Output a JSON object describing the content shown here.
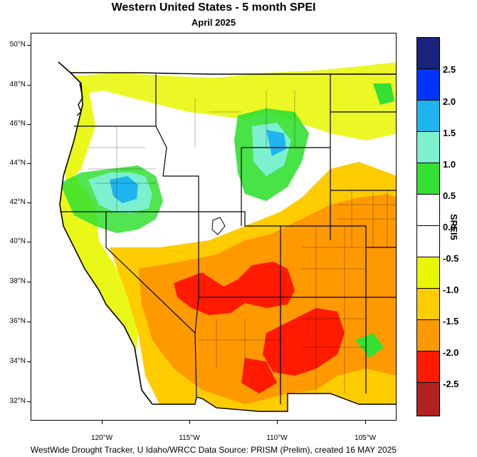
{
  "header": {
    "title": "Western United States - 5 month SPEI",
    "subtitle": "April 2025"
  },
  "footer": {
    "credit": "WestWide Drought Tracker, U Idaho/WRCC Data Source: PRISM (Prelim), created 16 MAY 2025"
  },
  "map": {
    "lat_labels": [
      "50°N",
      "48°N",
      "46°N",
      "44°N",
      "42°N",
      "40°N",
      "38°N",
      "36°N",
      "34°N",
      "32°N"
    ],
    "lon_labels": [
      "120°W",
      "115°W",
      "110°W",
      "105°W"
    ]
  },
  "legend": {
    "title": "SPEI5",
    "labels": [
      "2.5",
      "2.0",
      "1.5",
      "1.0",
      "0.5",
      "0.0",
      "-0.5",
      "-1.0",
      "-1.5",
      "-2.0",
      "-2.5"
    ],
    "colors": [
      "#1a237e",
      "#0033ff",
      "#1eb4f0",
      "#7df0d0",
      "#33e033",
      "#ffffff",
      "#ffffff",
      "#e8f700",
      "#ffcc00",
      "#ff9900",
      "#ff1a00",
      "#b22222"
    ]
  }
}
